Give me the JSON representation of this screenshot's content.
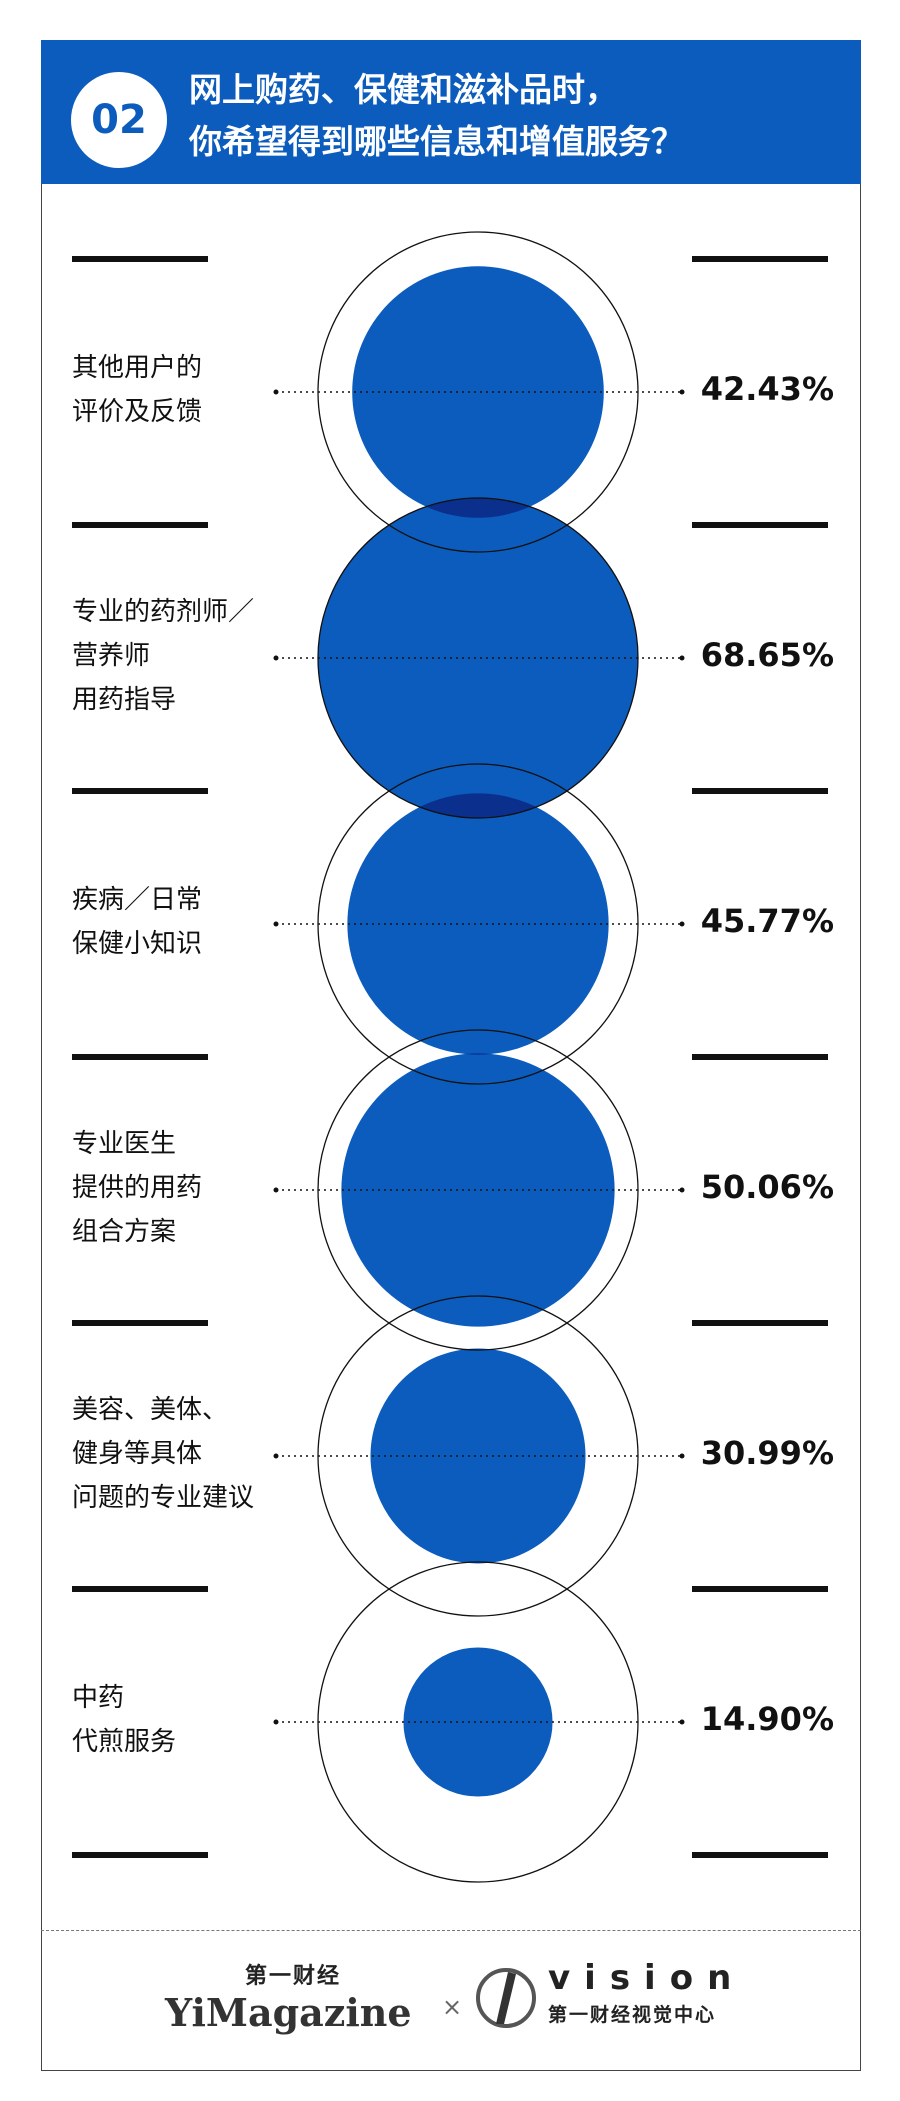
{
  "header": {
    "badge": "02",
    "title_line1": "网上购药、保健和滋补品时，",
    "title_line2": "你希望得到哪些信息和增值服务？"
  },
  "chart_data": {
    "type": "bubble",
    "categories": [
      [
        "其他用户的",
        "评价及反馈"
      ],
      [
        "专业的药剂师／",
        "营养师",
        "用药指导"
      ],
      [
        "疾病／日常",
        "保健小知识"
      ],
      [
        "专业医生",
        "提供的用药",
        "组合方案"
      ],
      [
        "美容、美体、",
        "健身等具体",
        "问题的专业建议"
      ],
      [
        "中药",
        "代煎服务"
      ]
    ],
    "values": [
      42.43,
      68.65,
      45.77,
      50.06,
      30.99,
      14.9
    ],
    "value_labels": [
      "42.43%",
      "68.65%",
      "45.77%",
      "50.06%",
      "30.99%",
      "14.90%"
    ],
    "max_value": 68.65,
    "colors": {
      "bubble": "#0c5cbd",
      "overlap": "#0a2f8c",
      "header": "#0c5cbd"
    }
  },
  "footer": {
    "brand1_cn": "第一财经",
    "brand1_en": "YiMagazine",
    "separator": "×",
    "brand2_en": "vision",
    "brand2_cn": "第一财经视觉中心"
  }
}
